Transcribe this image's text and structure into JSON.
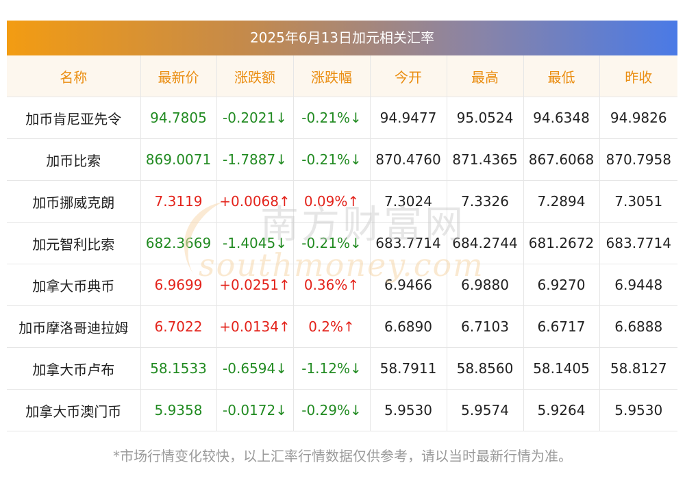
{
  "title": "2025年6月13日加元相关汇率",
  "headers": [
    "名称",
    "最新价",
    "涨跌额",
    "涨跌幅",
    "今开",
    "最高",
    "最低",
    "昨收"
  ],
  "rows": [
    {
      "name": "加币肯尼亚先令",
      "latest": "94.7805",
      "change": "-0.2021↓",
      "pct": "-0.21%↓",
      "open": "94.9477",
      "high": "95.0524",
      "low": "94.6348",
      "prev": "94.9826",
      "trend": "down"
    },
    {
      "name": "加币比索",
      "latest": "869.0071",
      "change": "-1.7887↓",
      "pct": "-0.21%↓",
      "open": "870.4760",
      "high": "871.4365",
      "low": "867.6068",
      "prev": "870.7958",
      "trend": "down"
    },
    {
      "name": "加币挪威克朗",
      "latest": "7.3119",
      "change": "+0.0068↑",
      "pct": "0.09%↑",
      "open": "7.3024",
      "high": "7.3326",
      "low": "7.2894",
      "prev": "7.3051",
      "trend": "up"
    },
    {
      "name": "加元智利比索",
      "latest": "682.3669",
      "change": "-1.4045↓",
      "pct": "-0.21%↓",
      "open": "683.7714",
      "high": "684.2744",
      "low": "681.2672",
      "prev": "683.7714",
      "trend": "down"
    },
    {
      "name": "加拿大币典币",
      "latest": "6.9699",
      "change": "+0.0251↑",
      "pct": "0.36%↑",
      "open": "6.9466",
      "high": "6.9880",
      "low": "6.9270",
      "prev": "6.9448",
      "trend": "up"
    },
    {
      "name": "加币摩洛哥迪拉姆",
      "latest": "6.7022",
      "change": "+0.0134↑",
      "pct": "0.2%↑",
      "open": "6.6890",
      "high": "6.7103",
      "low": "6.6717",
      "prev": "6.6888",
      "trend": "up"
    },
    {
      "name": "加拿大币卢布",
      "latest": "58.1533",
      "change": "-0.6594↓",
      "pct": "-1.12%↓",
      "open": "58.7911",
      "high": "58.8560",
      "low": "58.1405",
      "prev": "58.8127",
      "trend": "down"
    },
    {
      "name": "加拿大币澳门币",
      "latest": "5.9358",
      "change": "-0.0172↓",
      "pct": "-0.29%↓",
      "open": "5.9530",
      "high": "5.9574",
      "low": "5.9264",
      "prev": "5.9530",
      "trend": "down"
    }
  ],
  "watermark": {
    "cn": "南方财富网",
    "en": "southmoney.com"
  },
  "footnote": "*市场行情变化较快，以上汇率行情数据仅供参考，请以当时最新行情为准。",
  "colors": {
    "up": "#e3231b",
    "down": "#228b22",
    "header_text": "#ea8e12",
    "header_bg": "#fdf7ee"
  }
}
